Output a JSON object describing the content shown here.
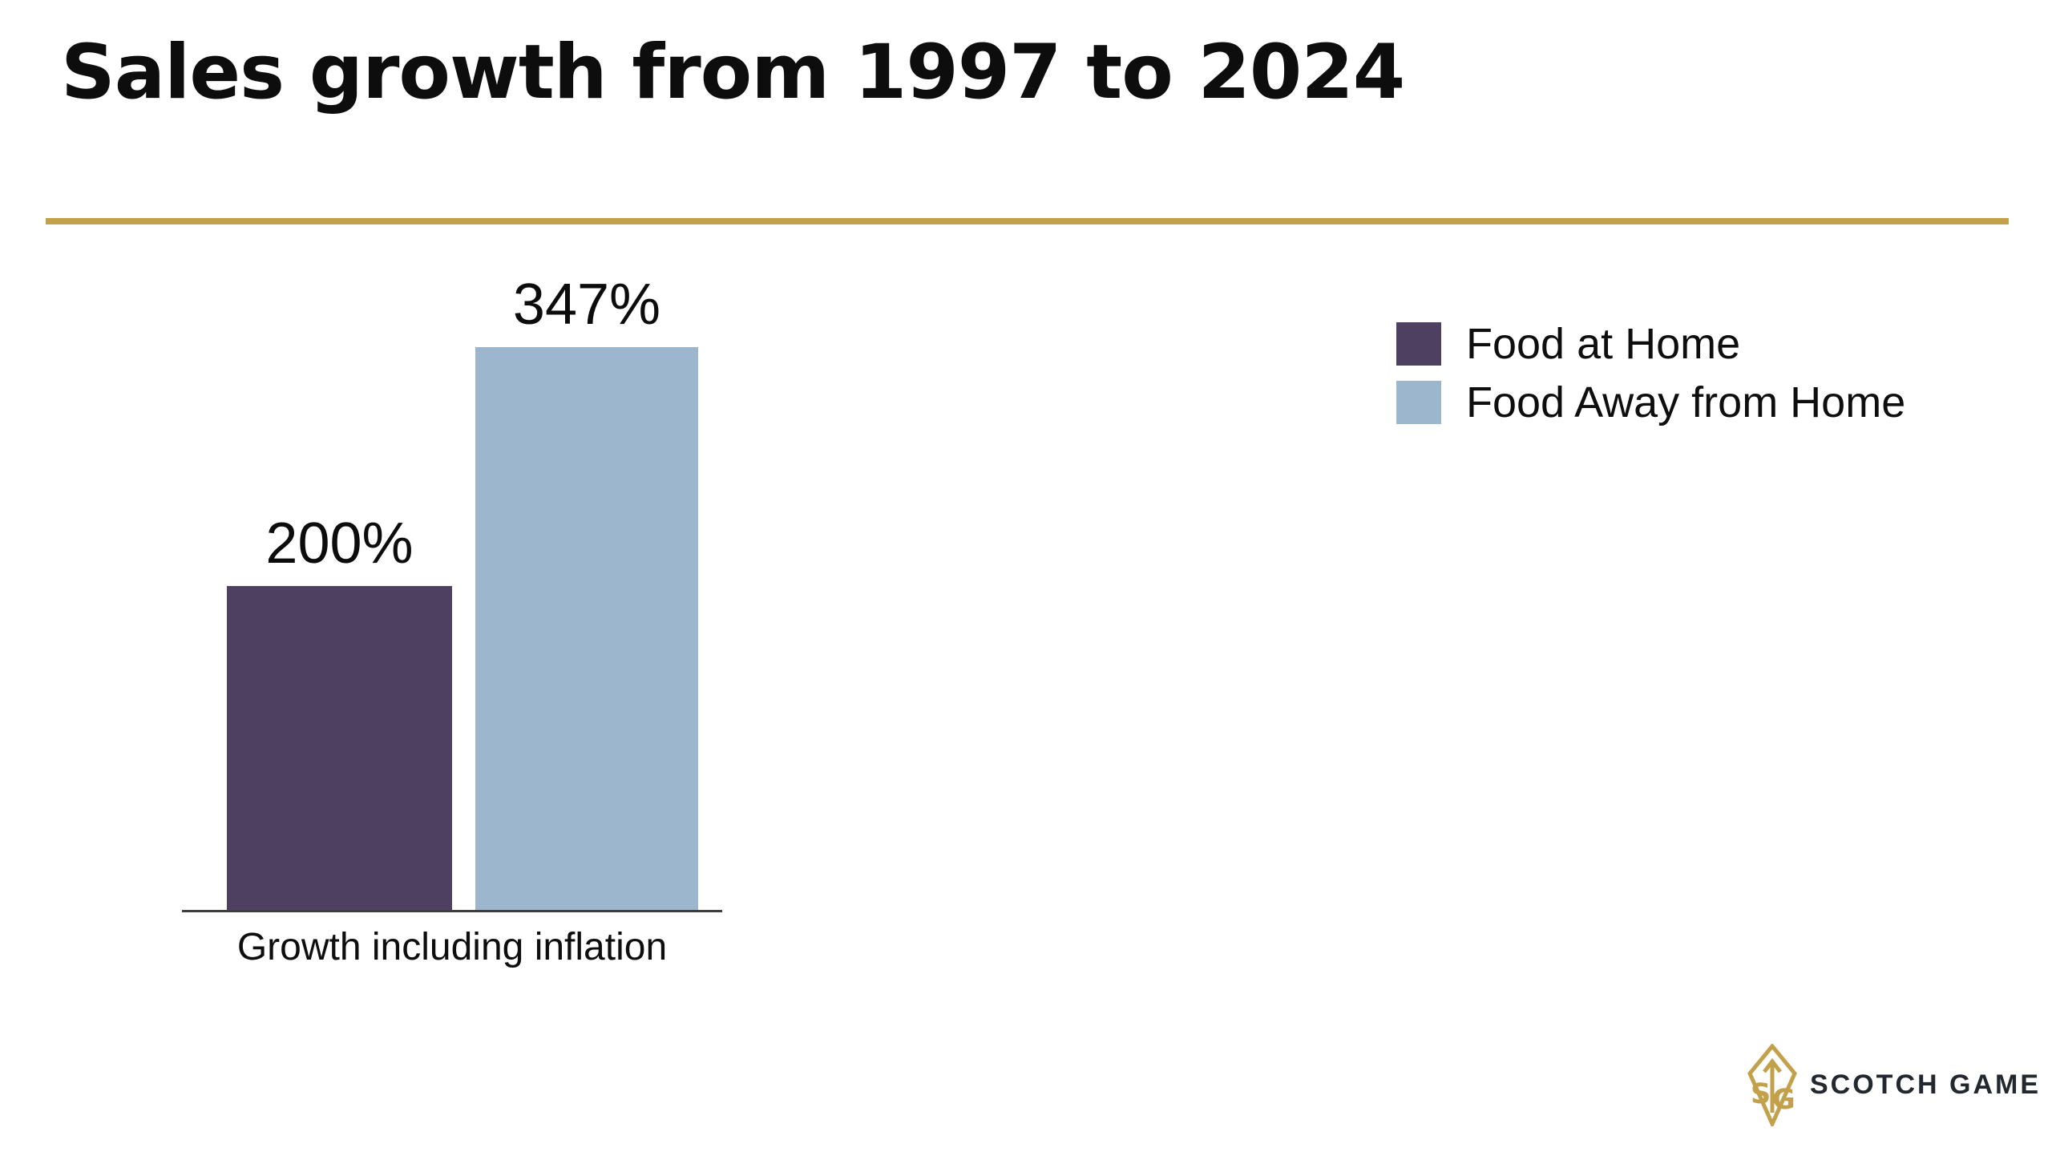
{
  "title": "Sales growth from 1997 to 2024",
  "accent_color": "#C3A14B",
  "chart_data": {
    "type": "bar",
    "title": "Sales growth from 1997 to 2024",
    "categories": [
      "Growth including inflation"
    ],
    "series": [
      {
        "name": "Food at Home",
        "value": 200,
        "label": "200%",
        "color": "#4D4060"
      },
      {
        "name": "Food Away from Home",
        "value": 347,
        "label": "347%",
        "color": "#9BB6CD"
      }
    ],
    "xlabel": "Growth including inflation",
    "ylabel": "",
    "ylim": [
      0,
      360
    ],
    "grid": false,
    "data_labels": true,
    "legend_position": "right",
    "axis_line_color": "#3f3f3f"
  },
  "brand": {
    "name": "SCOTCH GAME",
    "logo_icon": "leaf-monogram-icon",
    "logo_color": "#C3A14B",
    "text_color": "#23272E"
  }
}
